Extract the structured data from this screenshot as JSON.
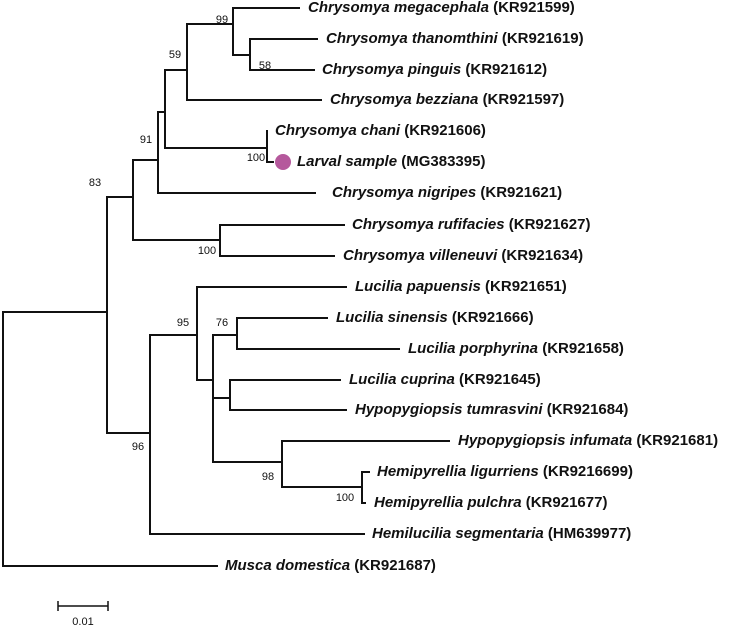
{
  "leaves": [
    {
      "species": "Chrysomya megacephala",
      "accession": "(KR921599)"
    },
    {
      "species": "Chrysomya thanomthini",
      "accession": "(KR921619)"
    },
    {
      "species": "Chrysomya pinguis",
      "accession": "(KR921612)"
    },
    {
      "species": "Chrysomya bezziana",
      "accession": "(KR921597)"
    },
    {
      "species": "Chrysomya chani",
      "accession": "(KR921606)"
    },
    {
      "species": "Larval sample",
      "accession": "(MG383395)"
    },
    {
      "species": "Chrysomya nigripes",
      "accession": "(KR921621)"
    },
    {
      "species": "Chrysomya rufifacies",
      "accession": "(KR921627)"
    },
    {
      "species": "Chrysomya villeneuvi",
      "accession": "(KR921634)"
    },
    {
      "species": "Lucilia papuensis",
      "accession": "(KR921651)"
    },
    {
      "species": "Lucilia sinensis",
      "accession": "(KR921666)"
    },
    {
      "species": "Lucilia porphyrina",
      "accession": "(KR921658)"
    },
    {
      "species": "Lucilia cuprina",
      "accession": "(KR921645)"
    },
    {
      "species": "Hypopygiopsis tumrasvini",
      "accession": "(KR921684)"
    },
    {
      "species": "Hypopygiopsis infumata",
      "accession": "(KR921681)"
    },
    {
      "species": "Hemipyrellia ligurriens",
      "accession": "(KR9216699)"
    },
    {
      "species": "Hemipyrellia pulchra",
      "accession": "(KR921677)"
    },
    {
      "species": "Hemilucilia segmentaria",
      "accession": "(HM639977)"
    },
    {
      "species": "Musca domestica",
      "accession": "(KR921687)"
    }
  ],
  "support_values": [
    99,
    59,
    58,
    91,
    100,
    83,
    100,
    95,
    76,
    96,
    98,
    100
  ],
  "scale_bar": 0.01
}
